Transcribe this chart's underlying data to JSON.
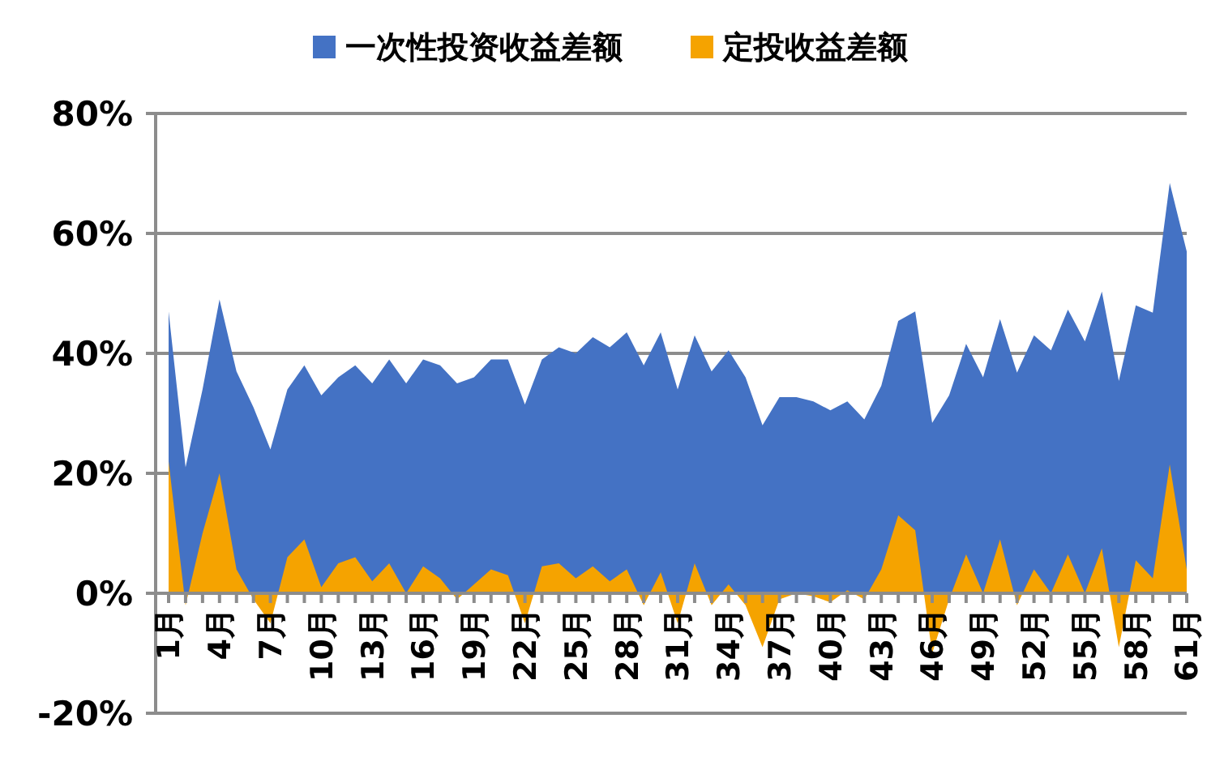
{
  "chart_data": {
    "type": "area",
    "categories": [
      "1月",
      null,
      null,
      "4月",
      null,
      null,
      "7月",
      null,
      null,
      "10月",
      null,
      null,
      "13月",
      null,
      null,
      "16月",
      null,
      null,
      "19月",
      null,
      null,
      "22月",
      null,
      null,
      "25月",
      null,
      null,
      "28月",
      null,
      null,
      "31月",
      null,
      null,
      "34月",
      null,
      null,
      "37月",
      null,
      null,
      "40月",
      null,
      null,
      "43月",
      null,
      null,
      "46月",
      null,
      null,
      "49月",
      null,
      null,
      "52月",
      null,
      null,
      "55月",
      null,
      null,
      "58月",
      null,
      null,
      "61月"
    ],
    "series": [
      {
        "name": "一次性投资收益差额",
        "color": "#4472c4",
        "values": [
          47,
          21,
          34,
          49,
          37,
          31,
          24,
          34,
          38,
          33,
          36,
          38,
          35,
          39,
          35,
          39,
          38,
          35,
          36,
          39,
          39,
          31.5,
          39,
          41,
          40,
          42.7,
          41,
          43.5,
          38,
          43.5,
          34,
          43,
          37,
          40.5,
          36,
          28,
          32.7,
          32.7,
          32,
          30.5,
          32,
          29,
          34.6,
          45.4,
          47,
          28.4,
          33,
          41.6,
          36,
          45.7,
          36.8,
          43,
          40.5,
          47.3,
          42,
          50.3,
          35.4,
          48,
          46.8,
          68.4,
          57
        ]
      },
      {
        "name": "定投收益差额",
        "color": "#f5a300",
        "values": [
          22,
          -2,
          10,
          20,
          4,
          -1,
          -5,
          6,
          9,
          1,
          5,
          6,
          2,
          5,
          0,
          4.5,
          2.5,
          -1,
          1.5,
          4,
          3,
          -5,
          4.5,
          5,
          2.5,
          4.5,
          2,
          4,
          -2,
          3.5,
          -5,
          5,
          -2,
          1.5,
          -2,
          -9,
          -1,
          0,
          -0.5,
          -1.5,
          0.5,
          -1,
          4,
          13,
          10.5,
          -10,
          -1,
          6.5,
          0,
          9,
          -2,
          4,
          0,
          6.5,
          0,
          7.5,
          -9,
          5.5,
          2.5,
          21.5,
          4
        ]
      }
    ],
    "ylim": [
      -20,
      80
    ],
    "yticks": [
      {
        "value": -20,
        "label": "-20%"
      },
      {
        "value": 0,
        "label": "0%"
      },
      {
        "value": 20,
        "label": "20%"
      },
      {
        "value": 40,
        "label": "40%"
      },
      {
        "value": 60,
        "label": "60%"
      },
      {
        "value": 80,
        "label": "80%"
      }
    ],
    "grid": "y",
    "legend": "top"
  }
}
